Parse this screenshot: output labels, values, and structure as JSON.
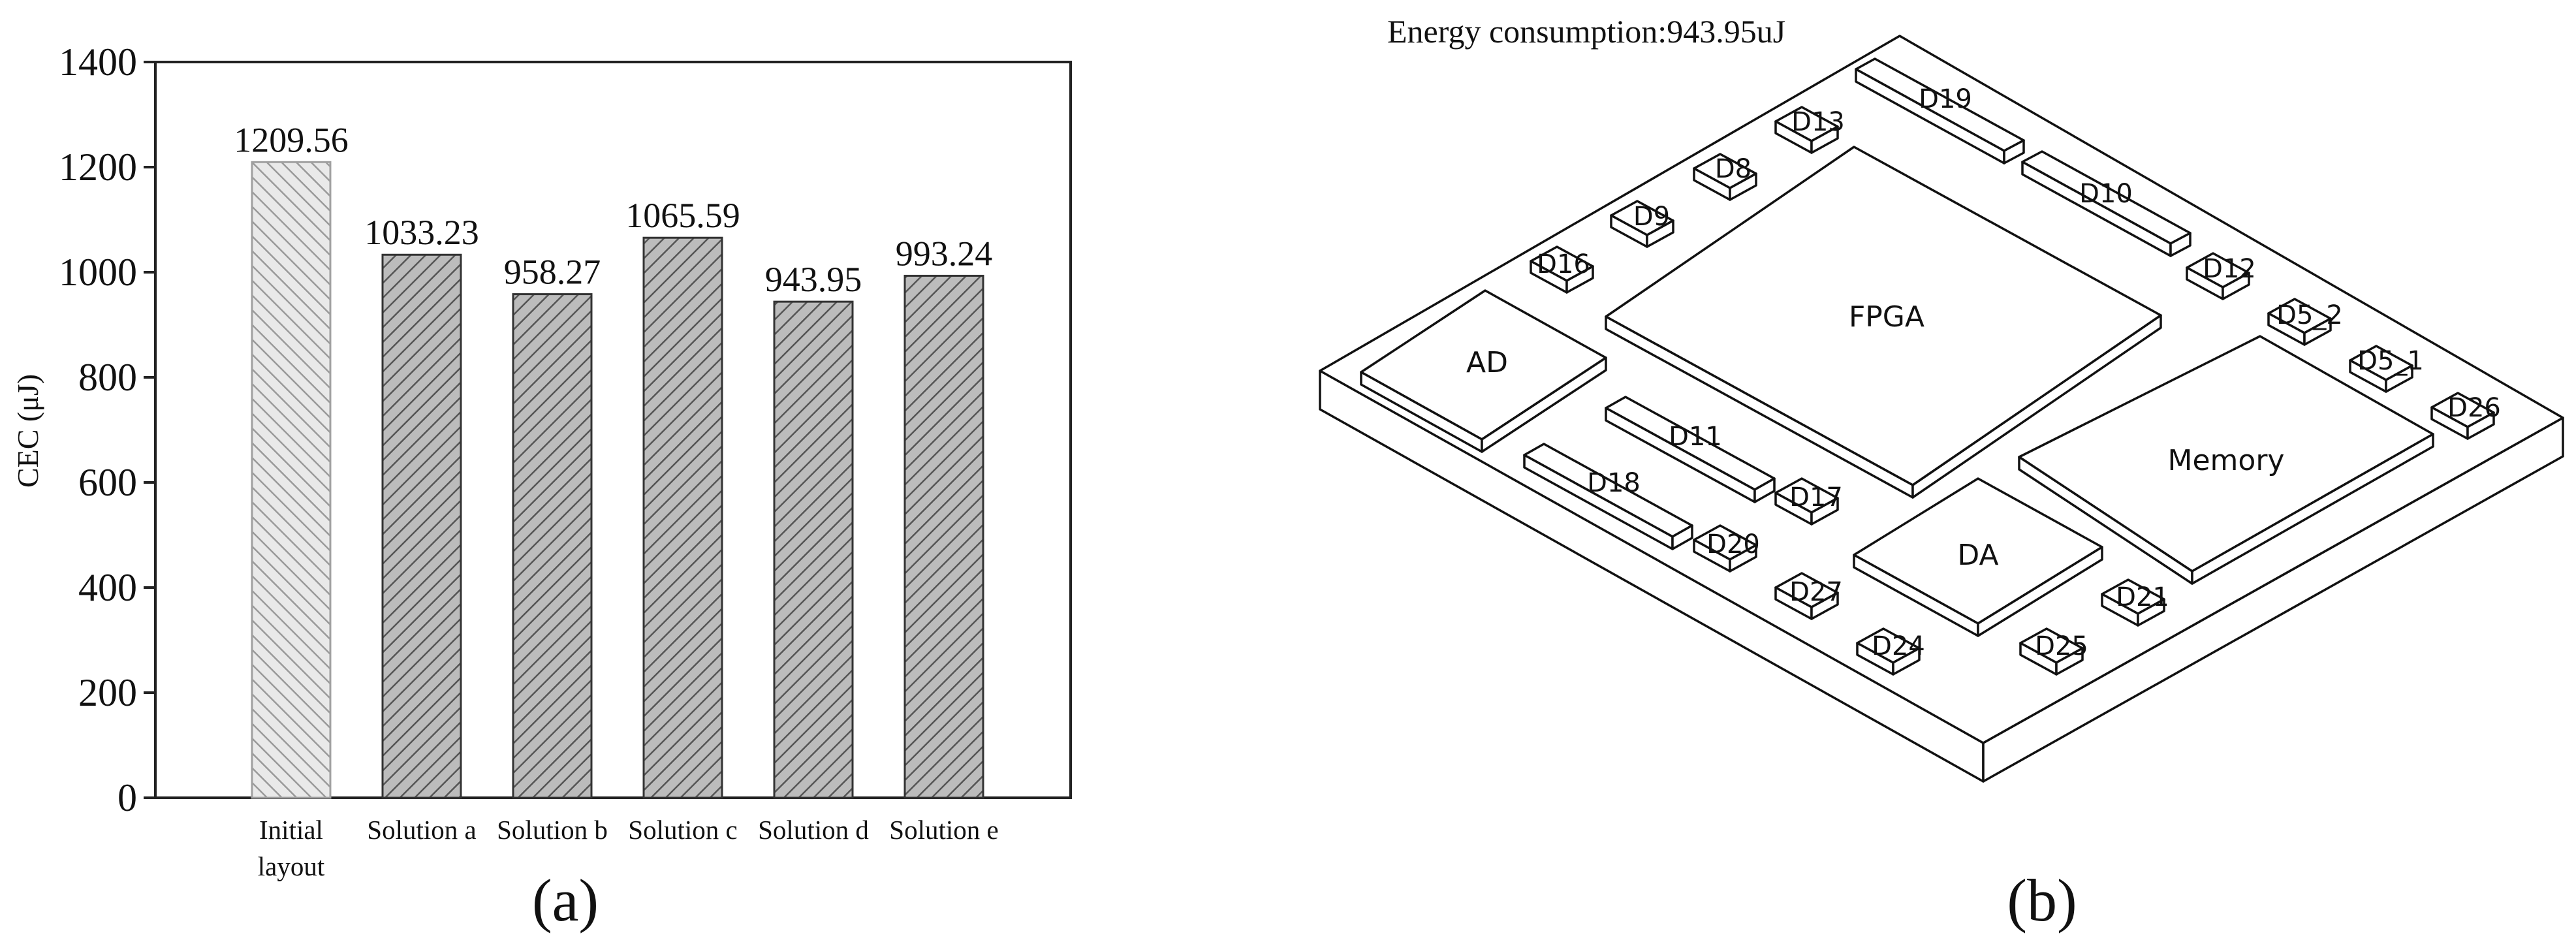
{
  "panel_a_label": "(a)",
  "panel_b_label": "(b)",
  "chart_data": {
    "type": "bar",
    "title": "",
    "ylabel": "CEC (μJ)",
    "xlabel": "",
    "ylim": [
      0,
      1400
    ],
    "yticks": [
      0,
      200,
      400,
      600,
      800,
      1000,
      1200,
      1400
    ],
    "grid": false,
    "categories": [
      [
        "Initial",
        "layout"
      ],
      [
        "Solution a"
      ],
      [
        "Solution b"
      ],
      [
        "Solution c"
      ],
      [
        "Solution d"
      ],
      [
        "Solution e"
      ]
    ],
    "values": [
      1209.56,
      1033.23,
      958.27,
      1065.59,
      943.95,
      993.24
    ],
    "data_labels": [
      "1209.56",
      "1033.23",
      "958.27",
      "1065.59",
      "943.95",
      "993.24"
    ]
  },
  "layout_b": {
    "energy_text": "Energy consumption:943.95uJ",
    "components": [
      "D19",
      "D13",
      "D8",
      "D9",
      "D16",
      "D10",
      "D12",
      "D5_2",
      "D5_1",
      "D26",
      "FPGA",
      "AD",
      "D11",
      "D18",
      "Memory",
      "D17",
      "D20",
      "DA",
      "D27",
      "D21",
      "D24",
      "D25"
    ]
  }
}
